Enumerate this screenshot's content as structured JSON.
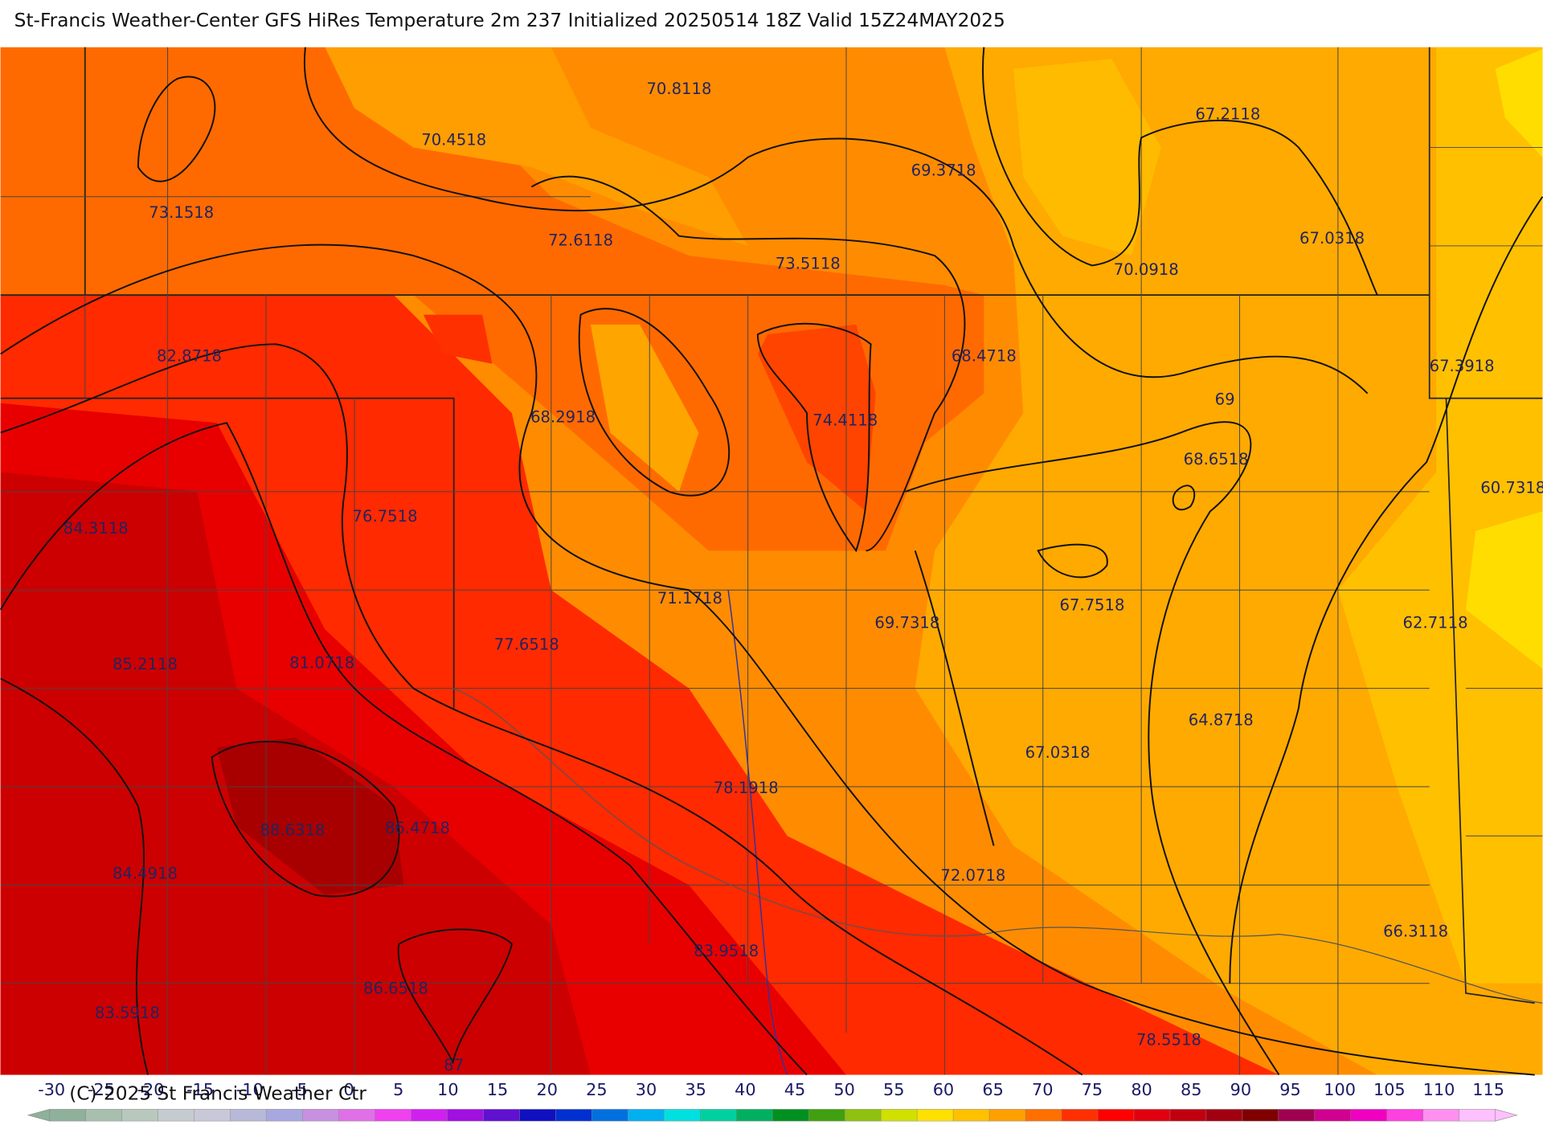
{
  "header": {
    "title": "St-Francis Weather-Center GFS HiRes Temperature 2m  237 Initialized 20250514 18Z Valid 15Z24MAY2025"
  },
  "map": {
    "labels": [
      "70.8118",
      "70.4518",
      "67.2118",
      "69.3718",
      "73.1518",
      "72.6118",
      "73.5118",
      "70.0918",
      "67.0318",
      "82.8718",
      "68.4718",
      "67.3918",
      "69",
      "68.2918",
      "74.4118",
      "68.6518",
      "60.7318",
      "84.3118",
      "76.7518",
      "71.1718",
      "69.7318",
      "67.7518",
      "62.7118",
      "77.6518",
      "85.2118",
      "81.0718",
      "64.8718",
      "67.0318",
      "78.1918",
      "88.6318",
      "86.4718",
      "84.4918",
      "72.0718",
      "66.3118",
      "83.9518",
      "86.6518",
      "83.5918",
      "78.5518",
      "87"
    ]
  },
  "colorbar": {
    "ticks": [
      -30,
      -25,
      -20,
      -15,
      -10,
      -5,
      0,
      5,
      10,
      15,
      20,
      25,
      30,
      35,
      40,
      45,
      50,
      55,
      60,
      65,
      70,
      75,
      80,
      85,
      90,
      95,
      100,
      105,
      110,
      115
    ],
    "colors": [
      "#8fb09a",
      "#a8bfae",
      "#b8c8bd",
      "#c5ccd0",
      "#c8c8d8",
      "#b8b8d8",
      "#a8a8e0",
      "#c890e0",
      "#e070e8",
      "#f040f0",
      "#d020f0",
      "#a010e0",
      "#6010d0",
      "#1010c0",
      "#0030d0",
      "#0070e0",
      "#00b0f0",
      "#00e0e0",
      "#00d0a0",
      "#00b060",
      "#009020",
      "#40a010",
      "#90c010",
      "#d0e000",
      "#ffe000",
      "#ffc000",
      "#ffa000",
      "#ff7000",
      "#ff3000",
      "#ff0000",
      "#e00010",
      "#c00010",
      "#a00010",
      "#800000",
      "#a00050",
      "#d00090",
      "#f000c0",
      "#ff40e0",
      "#ff90f0",
      "#ffc0ff"
    ]
  },
  "footer": {
    "copyright": "(C)-2025 St Francis Weather Ctr"
  }
}
